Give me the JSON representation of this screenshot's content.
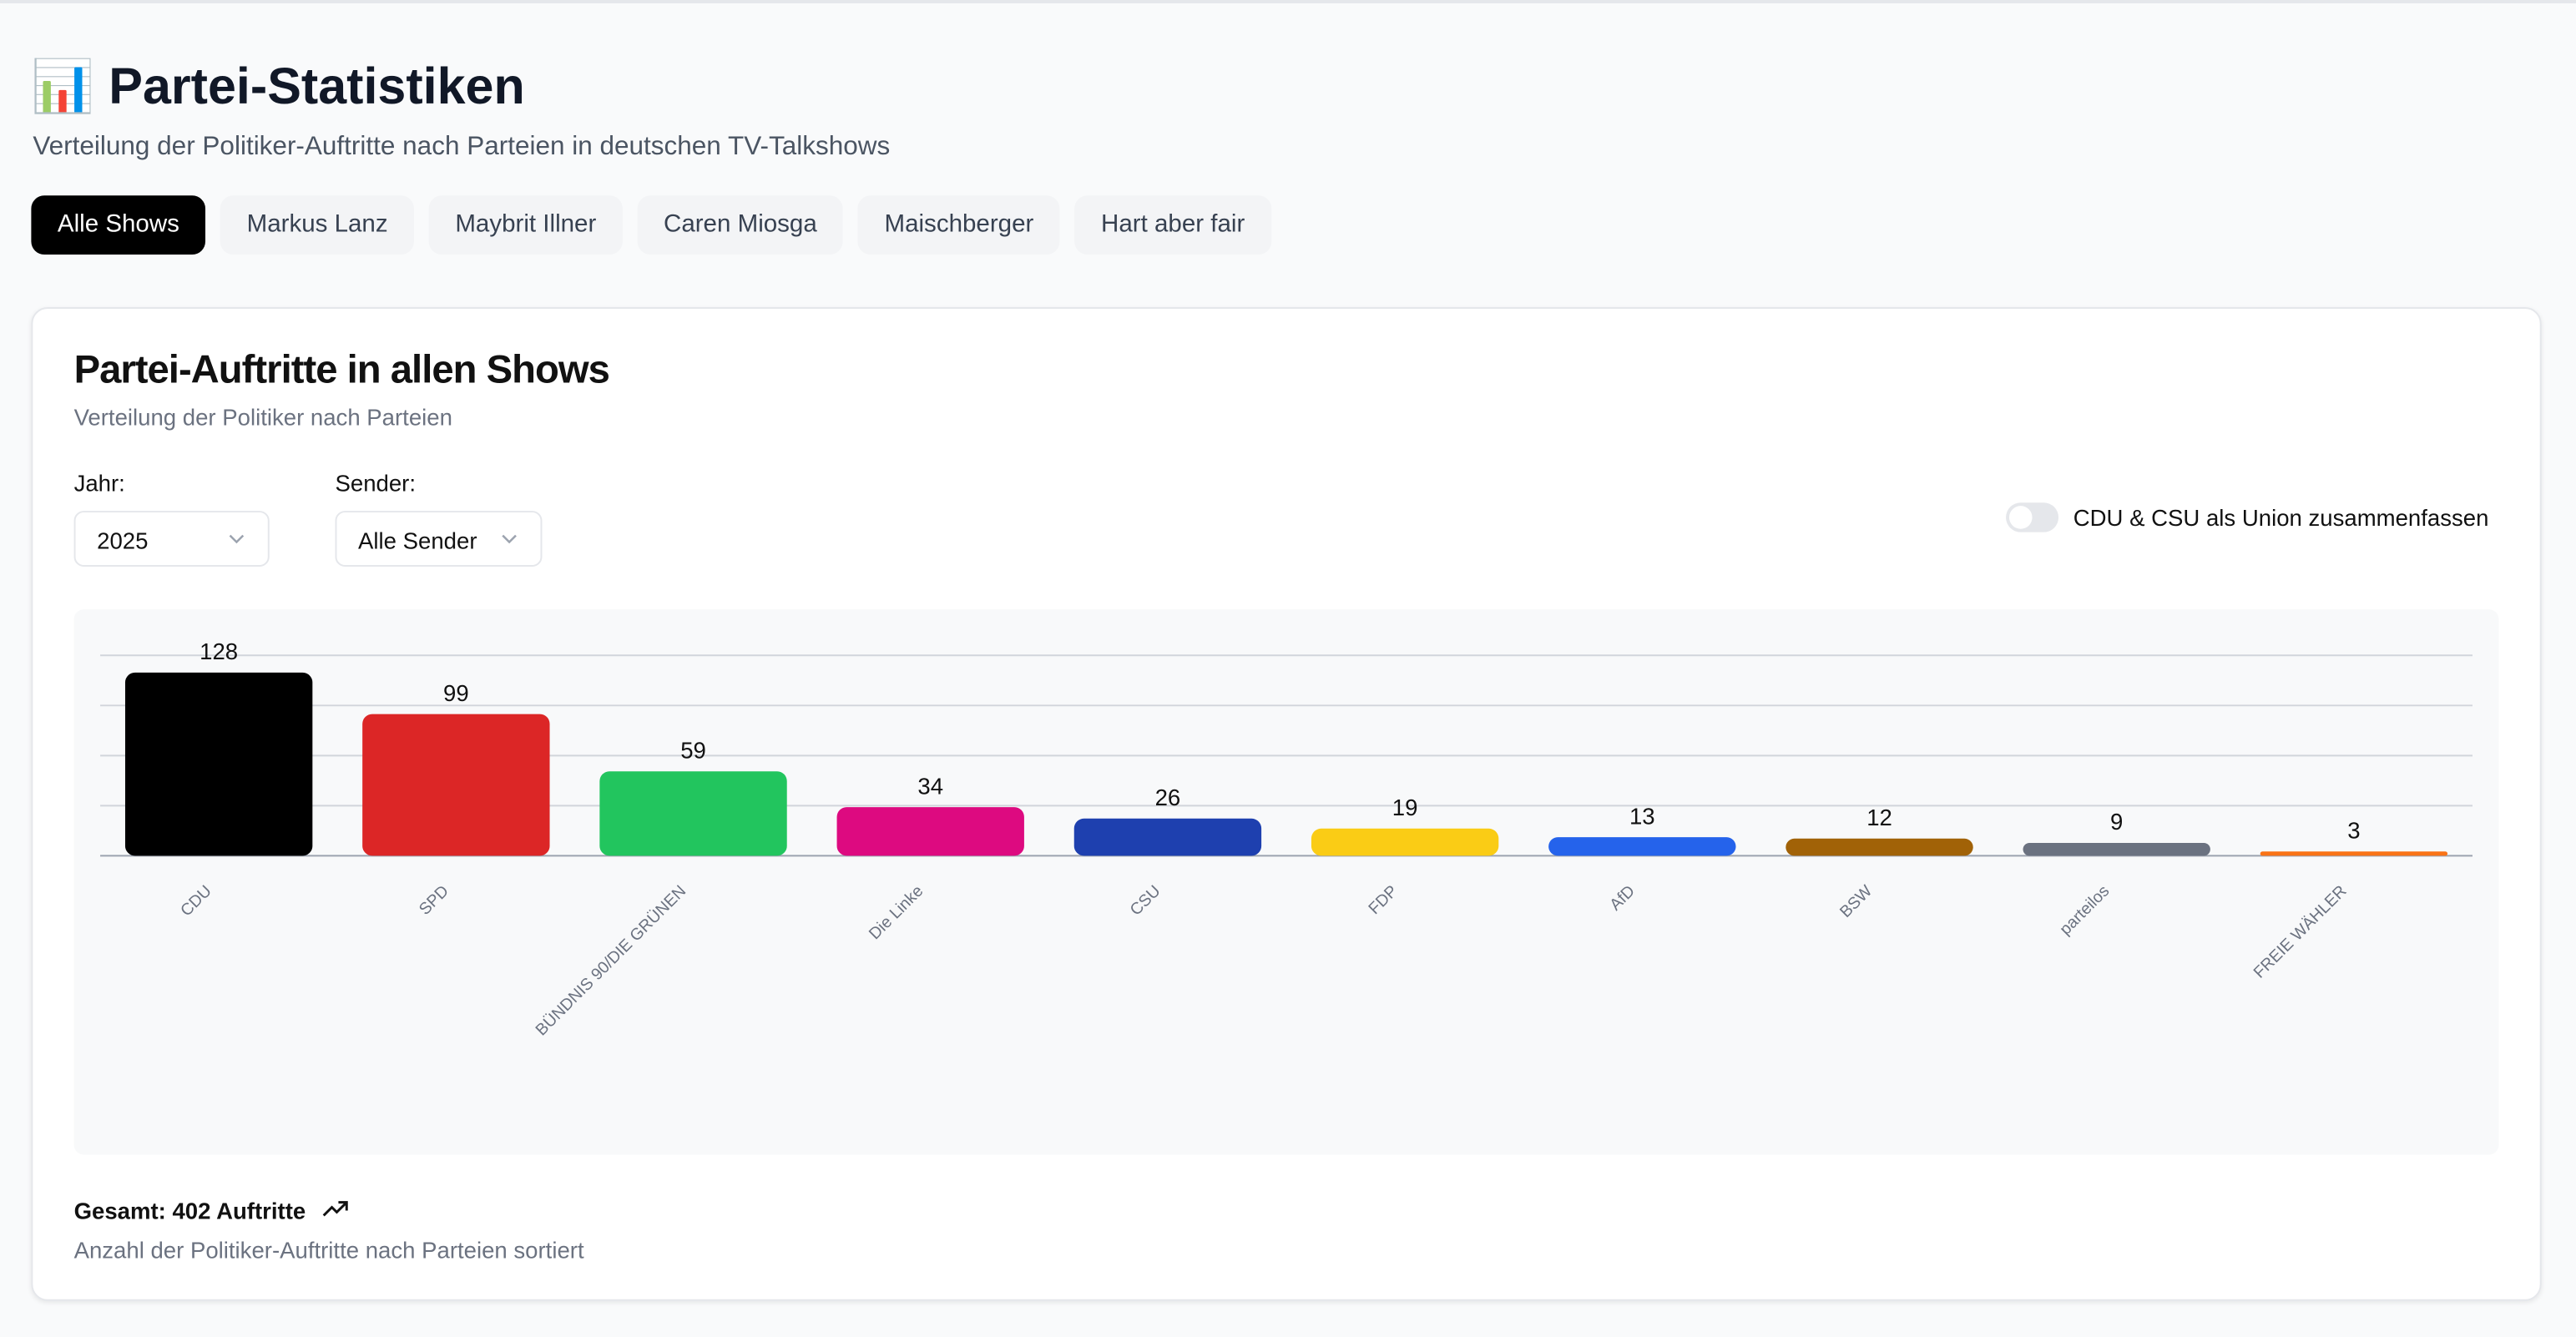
{
  "header": {
    "title": "📊 Partei-Statistiken",
    "subtitle": "Verteilung der Politiker-Auftritte nach Parteien in deutschen TV-Talkshows"
  },
  "tabs": [
    "Alle Shows",
    "Markus Lanz",
    "Maybrit Illner",
    "Caren Miosga",
    "Maischberger",
    "Hart aber fair"
  ],
  "card": {
    "title": "Partei-Auftritte in allen Shows",
    "subtitle": "Verteilung der Politiker nach Parteien",
    "filters": [
      {
        "label": "Jahr:",
        "value": "2025"
      },
      {
        "label": "Sender:",
        "value": "Alle Sender"
      }
    ],
    "toggle": "CDU & CSU als Union zusammenfassen"
  },
  "chart_data": {
    "type": "bar",
    "categories": [
      "CDU",
      "SPD",
      "BÜNDNIS 90/DIE GRÜNEN",
      "Die Linke",
      "CSU",
      "FDP",
      "AfD",
      "BSW",
      "parteilos",
      "FREIE WÄHLER"
    ],
    "values": [
      128,
      99,
      59,
      34,
      26,
      19,
      13,
      12,
      9,
      3
    ],
    "colors": [
      "#000000",
      "#dc2626",
      "#22c55e",
      "#dd0a80",
      "#1e40af",
      "#facc15",
      "#2563eb",
      "#a16207",
      "#6b7280",
      "#f97316"
    ],
    "ylim": [
      0,
      140
    ],
    "yticks": [
      0,
      35,
      70,
      105,
      140
    ],
    "grid": true
  },
  "footer": {
    "total": "Gesamt: 402 Auftritte",
    "note": "Anzahl der Politiker-Auftritte nach Parteien sortiert"
  }
}
